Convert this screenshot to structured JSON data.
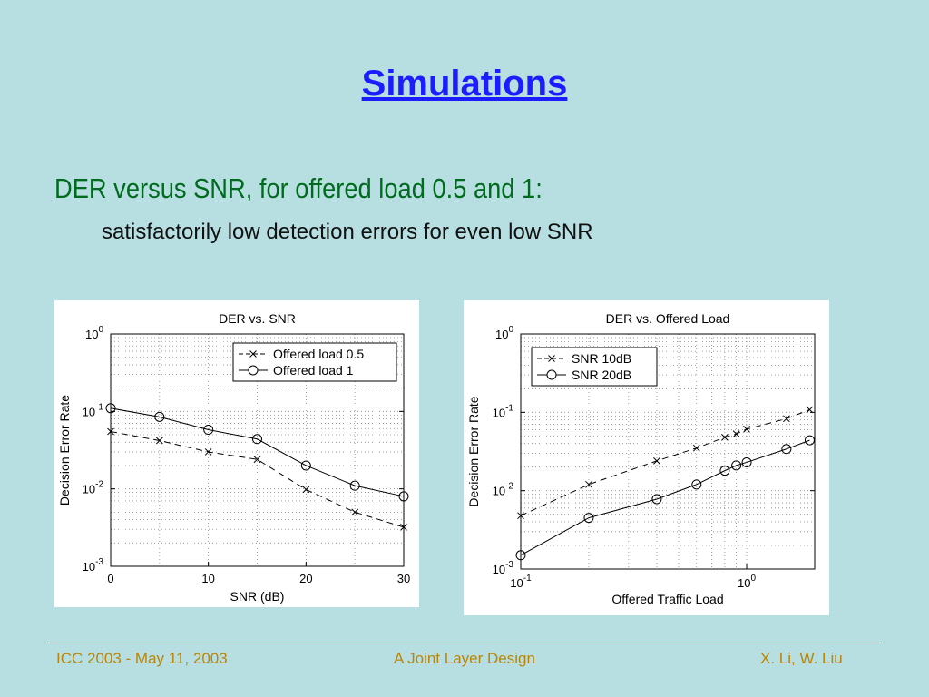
{
  "slide": {
    "title": "Simulations",
    "subtitle": "DER versus SNR, for offered load 0.5 and 1:",
    "bullet": "satisfactorily low detection errors for even low SNR"
  },
  "footer": {
    "left": "ICC 2003 - May 11, 2003",
    "center": "A Joint Layer Design",
    "right": "X. Li,  W. Liu"
  },
  "chart_data": [
    {
      "type": "line",
      "title": "DER vs. SNR",
      "xlabel": "SNR (dB)",
      "ylabel": "Decision Error Rate",
      "xscale": "linear",
      "yscale": "log",
      "xlim": [
        0,
        30
      ],
      "ylim": [
        0.001,
        1
      ],
      "xticks": [
        "0",
        "10",
        "20",
        "30"
      ],
      "yticks": [
        "10^0",
        "10^-1",
        "10^-2",
        "10^-3"
      ],
      "grid": true,
      "legend_position": "top-right",
      "series": [
        {
          "name": "Offered load 0.5",
          "marker": "x",
          "line": "dashed",
          "x": [
            0,
            5,
            10,
            15,
            20,
            25,
            30
          ],
          "y": [
            0.055,
            0.042,
            0.03,
            0.024,
            0.0098,
            0.005,
            0.0032
          ]
        },
        {
          "name": "Offered load 1",
          "marker": "o",
          "line": "solid",
          "x": [
            0,
            5,
            10,
            15,
            20,
            25,
            30
          ],
          "y": [
            0.11,
            0.085,
            0.058,
            0.044,
            0.02,
            0.011,
            0.008
          ]
        }
      ]
    },
    {
      "type": "line",
      "title": "DER vs. Offered Load",
      "xlabel": "Offered Traffic Load",
      "ylabel": "Decision Error Rate",
      "xscale": "log",
      "yscale": "log",
      "xlim": [
        0.1,
        2
      ],
      "ylim": [
        0.001,
        1
      ],
      "xticks": [
        "10^-1",
        "10^0"
      ],
      "yticks": [
        "10^0",
        "10^-1",
        "10^-2",
        "10^-3"
      ],
      "grid": true,
      "legend_position": "top-left",
      "series": [
        {
          "name": "SNR 10dB",
          "marker": "x",
          "line": "dashed",
          "x": [
            0.1,
            0.2,
            0.4,
            0.6,
            0.8,
            0.9,
            1.0,
            1.5,
            1.9
          ],
          "y": [
            0.0048,
            0.012,
            0.024,
            0.035,
            0.048,
            0.053,
            0.061,
            0.083,
            0.108
          ]
        },
        {
          "name": "SNR 20dB",
          "marker": "o",
          "line": "solid",
          "x": [
            0.1,
            0.2,
            0.4,
            0.6,
            0.8,
            0.9,
            1.0,
            1.5,
            1.9
          ],
          "y": [
            0.0015,
            0.0045,
            0.0078,
            0.012,
            0.018,
            0.021,
            0.023,
            0.034,
            0.044
          ]
        }
      ]
    }
  ]
}
